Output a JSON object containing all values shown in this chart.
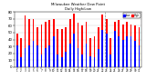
{
  "title": "Milwaukee Weather Dew Point",
  "subtitle": "Daily High/Low",
  "background_color": "#ffffff",
  "high_color": "#ff0000",
  "low_color": "#0000ff",
  "ylim": [
    0,
    80
  ],
  "ytick_labels": [
    "",
    "10",
    "20",
    "30",
    "40",
    "50",
    "60",
    "70",
    ""
  ],
  "yticks": [
    0,
    10,
    20,
    30,
    40,
    50,
    60,
    70,
    80
  ],
  "n_bars": 31,
  "highs": [
    48,
    42,
    75,
    70,
    70,
    58,
    62,
    65,
    68,
    70,
    55,
    55,
    58,
    70,
    78,
    64,
    60,
    66,
    42,
    44,
    58,
    76,
    70,
    42,
    65,
    68,
    62,
    66,
    62,
    60,
    58
  ],
  "lows": [
    32,
    14,
    28,
    32,
    38,
    32,
    18,
    28,
    32,
    44,
    18,
    14,
    22,
    34,
    48,
    28,
    18,
    34,
    16,
    14,
    26,
    54,
    48,
    18,
    52,
    44,
    40,
    44,
    44,
    38,
    32
  ],
  "x_labels": [
    "1",
    "2",
    "3",
    "4",
    "5",
    "6",
    "7",
    "8",
    "9",
    "10",
    "11",
    "12",
    "13",
    "14",
    "15",
    "16",
    "17",
    "18",
    "19",
    "20",
    "21",
    "22",
    "23",
    "24",
    "25",
    "26",
    "27",
    "28",
    "29",
    "30",
    "31"
  ],
  "vline_x": 21.5,
  "legend_high": "High",
  "legend_low": "Low"
}
